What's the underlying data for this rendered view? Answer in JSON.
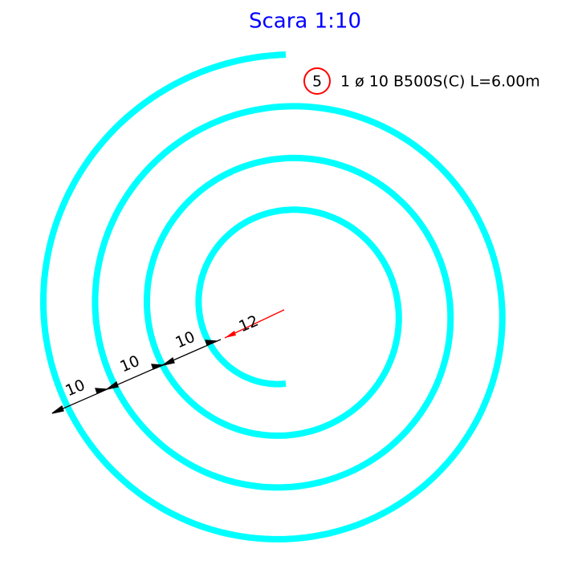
{
  "title": "Scara 1:10",
  "label": {
    "number": "5",
    "text": "1 ø  10 B500S(C) L=6.00m"
  },
  "dimensions": [
    "10",
    "10",
    "10",
    "12"
  ]
}
